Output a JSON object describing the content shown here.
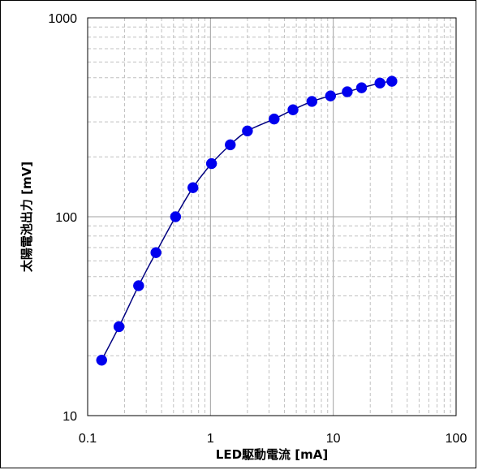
{
  "chart_data": {
    "type": "scatter",
    "title": "",
    "xlabel": "LED駆動電流 [mA]",
    "ylabel": "太陽電池出力 [mV]",
    "x_scale": "log",
    "y_scale": "log",
    "xlim": [
      0.1,
      100
    ],
    "ylim": [
      10,
      1000
    ],
    "x_ticks": [
      "0.1",
      "1",
      "10",
      "100"
    ],
    "y_ticks": [
      "10",
      "100",
      "1000"
    ],
    "grid": true,
    "legend": "none",
    "colors": {
      "marker": "#0000ee",
      "line": "#000080",
      "grid_major": "#a0a0a0",
      "grid_minor": "#c0c0c0"
    },
    "series": [
      {
        "marker": "circle",
        "line": "smooth",
        "x": [
          0.13,
          0.18,
          0.26,
          0.36,
          0.52,
          0.72,
          1.02,
          1.45,
          2.0,
          3.3,
          4.7,
          6.7,
          9.5,
          13,
          17,
          24,
          30
        ],
        "y": [
          19,
          28,
          45,
          66,
          100,
          140,
          185,
          230,
          270,
          310,
          345,
          380,
          405,
          425,
          445,
          470,
          480
        ]
      }
    ]
  }
}
